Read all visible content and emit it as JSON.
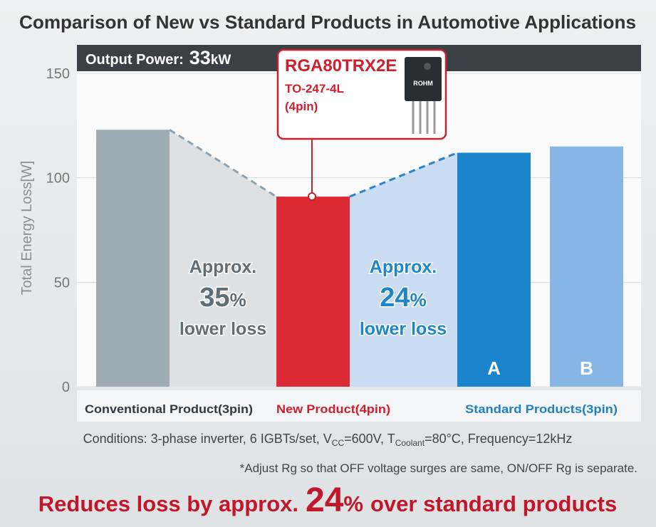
{
  "chart_data": {
    "type": "bar",
    "title": "Comparison of New vs Standard Products in Automotive Applications",
    "output_power": {
      "label": "Output Power:",
      "value": "33",
      "unit": "kW"
    },
    "ylabel": "Total Energy Loss[W]",
    "ylim": [
      0,
      150
    ],
    "yticks": [
      0,
      50,
      100,
      150
    ],
    "grid": true,
    "categories": [
      null,
      null,
      "A",
      "B"
    ],
    "values": [
      123,
      91,
      112,
      115
    ],
    "colors": [
      "#9eadb4",
      "#dc2a35",
      "#1a84cc",
      "#86b6e4"
    ],
    "groups": [
      {
        "label": "Conventional Product(3pin)",
        "color": "#2e3b46",
        "span": 1
      },
      {
        "label": "New Product(4pin)",
        "color": "#d0202e",
        "span": 1
      },
      {
        "label": "Standard Products(3pin)",
        "color": "#1f80c4",
        "span": 2
      }
    ],
    "annotations": [
      {
        "lines": [
          "Approx.",
          "35",
          "%",
          "lower loss"
        ],
        "color": "#5e6d77"
      },
      {
        "lines": [
          "Approx.",
          "24",
          "%",
          "lower loss"
        ],
        "color": "#1e86c8"
      }
    ],
    "callout": {
      "part": "RGA80TRX2E",
      "package": "TO-247-4L",
      "pins": "(4pin)",
      "chip_brand": "ROHM"
    },
    "conditions": [
      "Conditions: 3-phase inverter, 6 IGBTs/set, V",
      "CC",
      "=600V, T",
      "Coolant",
      "=80°C, Frequency=12kHz"
    ],
    "note": "*Adjust Rg so that OFF voltage surges are same, ON/OFF Rg is separate.",
    "headline": [
      "Reduces loss by approx.",
      "24",
      "%",
      "over standard products"
    ]
  }
}
